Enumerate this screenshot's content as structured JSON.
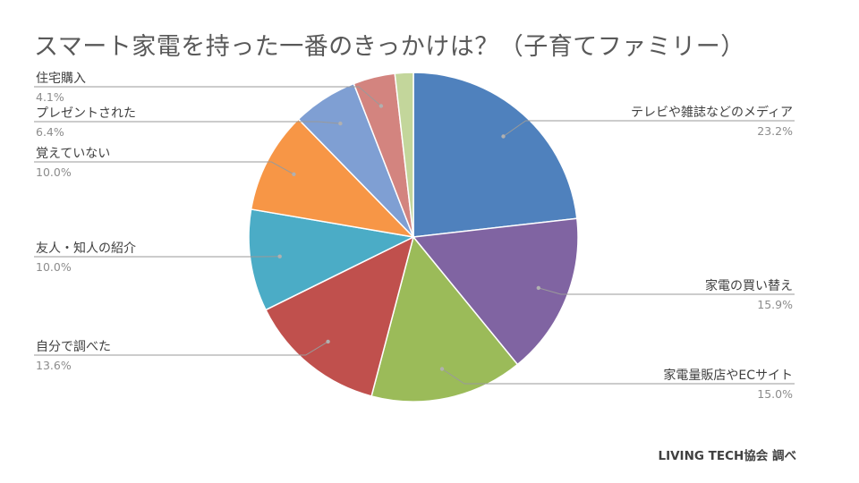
{
  "chart_data": {
    "type": "pie",
    "title": "スマート家電を持った一番のきっかけは？（子育てファミリー）",
    "start_angle_deg": 0,
    "direction": "clockwise",
    "slices": [
      {
        "label": "テレビや雑誌などのメディア",
        "value": 23.2,
        "display": "23.2%",
        "color": "#4f81bd"
      },
      {
        "label": "家電の買い替え",
        "value": 15.9,
        "display": "15.9%",
        "color": "#8064a2"
      },
      {
        "label": "家電量販店やECサイト",
        "value": 15.0,
        "display": "15.0%",
        "color": "#9bbb59"
      },
      {
        "label": "自分で調べた",
        "value": 13.6,
        "display": "13.6%",
        "color": "#c0504d"
      },
      {
        "label": "友人・知人の紹介",
        "value": 10.0,
        "display": "10.0%",
        "color": "#4bacc6"
      },
      {
        "label": "覚えていない",
        "value": 10.0,
        "display": "10.0%",
        "color": "#f79646"
      },
      {
        "label": "プレゼントされた",
        "value": 6.4,
        "display": "6.4%",
        "color": "#7f9fd3"
      },
      {
        "label": "住宅購入",
        "value": 4.1,
        "display": "4.1%",
        "color": "#d3847f"
      },
      {
        "label": "",
        "value": 1.8,
        "display": "",
        "color": "#c3d69b"
      }
    ]
  },
  "source": "LIVING TECH協会 調べ"
}
